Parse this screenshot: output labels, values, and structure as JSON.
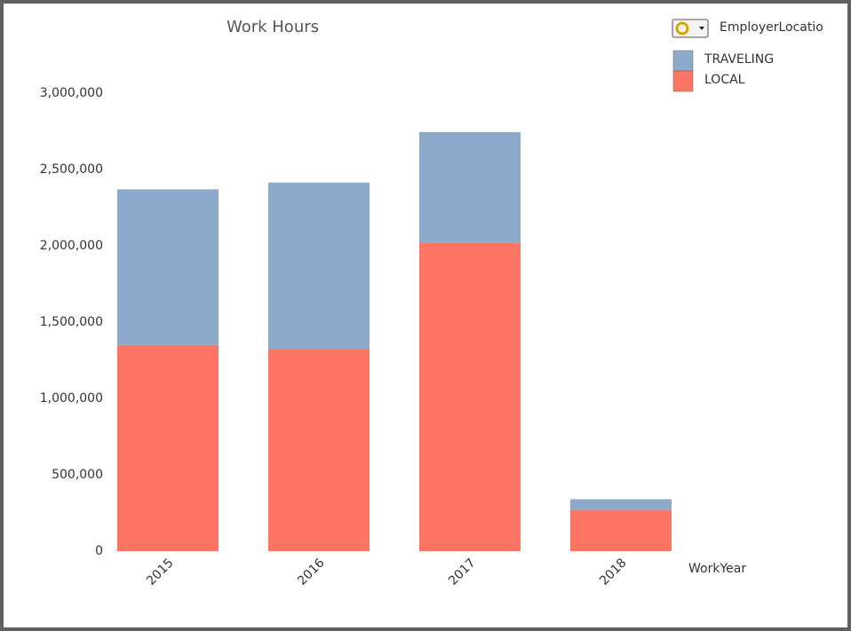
{
  "chart_data": {
    "type": "stacked_bar",
    "title": "Work Hours",
    "legend_title": "EmployerLocatio",
    "x_label": "WorkYear",
    "categories": [
      "2015",
      "2016",
      "2017",
      "2018"
    ],
    "series": [
      {
        "name": "TRAVELING",
        "color": "#8eaacb",
        "values": [
          1020000,
          1090000,
          725000,
          70000
        ]
      },
      {
        "name": "LOCAL",
        "color": "#ff7563",
        "values": [
          1350000,
          1325000,
          2020000,
          270000
        ]
      }
    ],
    "ylim": [
      0,
      3000000
    ],
    "yticks": [
      0,
      {
        "value": 500000,
        "label": "500,000"
      },
      {
        "value": 1000000,
        "label": "1,000,000"
      },
      {
        "value": 1500000,
        "label": "1,500,000"
      },
      {
        "value": 2000000,
        "label": "2,000,000"
      },
      {
        "value": 2500000,
        "label": "2,500,000"
      },
      {
        "value": 3000000,
        "label": "3,000,000"
      }
    ],
    "grid": false,
    "legend": "top-right"
  }
}
